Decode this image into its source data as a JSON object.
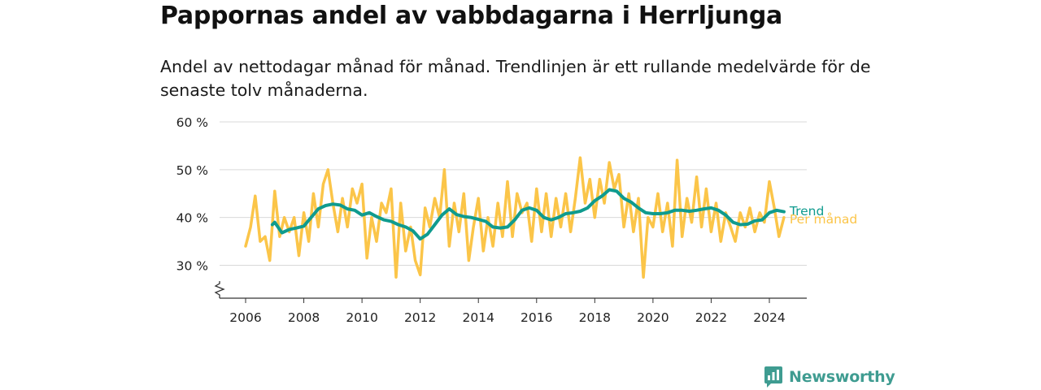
{
  "title": "Pappornas andel av vabbdagarna i Herrljunga",
  "subtitle": "Andel av nettodagar månad för månad. Trendlinjen är ett rullande medelvärde för de senaste tolv månaderna.",
  "brand": {
    "name": "Newsworthy",
    "color": "#3f9c91"
  },
  "colors": {
    "monthly": "#fbc549",
    "trend": "#0f9b8e",
    "grid": "#d9d9d9",
    "axis": "#333333"
  },
  "chart_data": {
    "type": "line",
    "x_unit": "year",
    "xlim": [
      2005.5,
      2025.25
    ],
    "ylim": [
      23,
      60
    ],
    "axis_break": true,
    "y_ticks": [
      30,
      40,
      50,
      60
    ],
    "y_tick_labels": [
      "30 %",
      "40 %",
      "50 %",
      "60 %"
    ],
    "x_ticks": [
      2006,
      2008,
      2010,
      2012,
      2014,
      2016,
      2018,
      2020,
      2022,
      2024
    ],
    "x_tick_labels": [
      "2006",
      "2008",
      "2010",
      "2012",
      "2014",
      "2016",
      "2018",
      "2020",
      "2022",
      "2024"
    ],
    "series": [
      {
        "name": "Per månad",
        "key": "monthly",
        "points": [
          [
            2006.0,
            34
          ],
          [
            2006.17,
            38
          ],
          [
            2006.33,
            44.5
          ],
          [
            2006.5,
            35
          ],
          [
            2006.67,
            36
          ],
          [
            2006.83,
            31
          ],
          [
            2007.0,
            45.5
          ],
          [
            2007.17,
            36
          ],
          [
            2007.33,
            40
          ],
          [
            2007.5,
            37
          ],
          [
            2007.67,
            40
          ],
          [
            2007.83,
            32
          ],
          [
            2008.0,
            41
          ],
          [
            2008.17,
            35
          ],
          [
            2008.33,
            45
          ],
          [
            2008.5,
            38
          ],
          [
            2008.67,
            47
          ],
          [
            2008.83,
            50
          ],
          [
            2009.0,
            43
          ],
          [
            2009.17,
            37
          ],
          [
            2009.33,
            44
          ],
          [
            2009.5,
            38
          ],
          [
            2009.67,
            46
          ],
          [
            2009.83,
            43
          ],
          [
            2010.0,
            47
          ],
          [
            2010.17,
            31.5
          ],
          [
            2010.33,
            40
          ],
          [
            2010.5,
            35
          ],
          [
            2010.67,
            43
          ],
          [
            2010.83,
            41
          ],
          [
            2011.0,
            46
          ],
          [
            2011.17,
            27.5
          ],
          [
            2011.33,
            43
          ],
          [
            2011.5,
            33
          ],
          [
            2011.67,
            38
          ],
          [
            2011.83,
            31
          ],
          [
            2012.0,
            28
          ],
          [
            2012.17,
            42
          ],
          [
            2012.33,
            38
          ],
          [
            2012.5,
            44
          ],
          [
            2012.67,
            40
          ],
          [
            2012.83,
            50
          ],
          [
            2013.0,
            34
          ],
          [
            2013.17,
            43
          ],
          [
            2013.33,
            37
          ],
          [
            2013.5,
            45
          ],
          [
            2013.67,
            31
          ],
          [
            2013.83,
            38
          ],
          [
            2014.0,
            44
          ],
          [
            2014.17,
            33
          ],
          [
            2014.33,
            40
          ],
          [
            2014.5,
            34
          ],
          [
            2014.67,
            43
          ],
          [
            2014.83,
            36
          ],
          [
            2015.0,
            47.5
          ],
          [
            2015.17,
            36
          ],
          [
            2015.33,
            45
          ],
          [
            2015.5,
            41
          ],
          [
            2015.67,
            43
          ],
          [
            2015.83,
            35
          ],
          [
            2016.0,
            46
          ],
          [
            2016.17,
            37
          ],
          [
            2016.33,
            45
          ],
          [
            2016.5,
            36
          ],
          [
            2016.67,
            44
          ],
          [
            2016.83,
            38
          ],
          [
            2017.0,
            45
          ],
          [
            2017.17,
            37
          ],
          [
            2017.33,
            44
          ],
          [
            2017.5,
            52.5
          ],
          [
            2017.67,
            43
          ],
          [
            2017.83,
            48
          ],
          [
            2018.0,
            40
          ],
          [
            2018.17,
            48
          ],
          [
            2018.33,
            43
          ],
          [
            2018.5,
            51.5
          ],
          [
            2018.67,
            46
          ],
          [
            2018.83,
            49
          ],
          [
            2019.0,
            38
          ],
          [
            2019.17,
            45
          ],
          [
            2019.33,
            37
          ],
          [
            2019.5,
            44
          ],
          [
            2019.67,
            27.5
          ],
          [
            2019.83,
            40
          ],
          [
            2020.0,
            38
          ],
          [
            2020.17,
            45
          ],
          [
            2020.33,
            37
          ],
          [
            2020.5,
            43
          ],
          [
            2020.67,
            34
          ],
          [
            2020.83,
            52
          ],
          [
            2021.0,
            36
          ],
          [
            2021.17,
            44
          ],
          [
            2021.33,
            39
          ],
          [
            2021.5,
            48.5
          ],
          [
            2021.67,
            38
          ],
          [
            2021.83,
            46
          ],
          [
            2022.0,
            37
          ],
          [
            2022.17,
            43
          ],
          [
            2022.33,
            35
          ],
          [
            2022.5,
            41
          ],
          [
            2022.67,
            38
          ],
          [
            2022.83,
            35
          ],
          [
            2023.0,
            41
          ],
          [
            2023.17,
            38
          ],
          [
            2023.33,
            42
          ],
          [
            2023.5,
            37
          ],
          [
            2023.67,
            41
          ],
          [
            2023.83,
            39
          ],
          [
            2024.0,
            47.5
          ],
          [
            2024.17,
            42
          ],
          [
            2024.33,
            36
          ],
          [
            2024.5,
            40
          ]
        ]
      },
      {
        "name": "Trend",
        "key": "trend",
        "points": [
          [
            2006.92,
            38.5
          ],
          [
            2007.0,
            39
          ],
          [
            2007.25,
            36.8
          ],
          [
            2007.5,
            37.5
          ],
          [
            2007.75,
            37.8
          ],
          [
            2008.0,
            38.2
          ],
          [
            2008.25,
            40
          ],
          [
            2008.5,
            41.8
          ],
          [
            2008.75,
            42.5
          ],
          [
            2009.0,
            42.8
          ],
          [
            2009.25,
            42.6
          ],
          [
            2009.5,
            41.8
          ],
          [
            2009.75,
            41.5
          ],
          [
            2010.0,
            40.5
          ],
          [
            2010.25,
            41
          ],
          [
            2010.5,
            40.2
          ],
          [
            2010.75,
            39.5
          ],
          [
            2011.0,
            39.2
          ],
          [
            2011.25,
            38.5
          ],
          [
            2011.5,
            38
          ],
          [
            2011.75,
            37.2
          ],
          [
            2012.0,
            35.5
          ],
          [
            2012.25,
            36.5
          ],
          [
            2012.5,
            38.5
          ],
          [
            2012.75,
            40.5
          ],
          [
            2013.0,
            41.8
          ],
          [
            2013.25,
            40.6
          ],
          [
            2013.5,
            40.2
          ],
          [
            2013.75,
            40
          ],
          [
            2014.0,
            39.6
          ],
          [
            2014.25,
            39.2
          ],
          [
            2014.5,
            38
          ],
          [
            2014.75,
            37.8
          ],
          [
            2015.0,
            38
          ],
          [
            2015.25,
            39.5
          ],
          [
            2015.5,
            41.5
          ],
          [
            2015.75,
            42
          ],
          [
            2016.0,
            41.5
          ],
          [
            2016.25,
            40
          ],
          [
            2016.5,
            39.5
          ],
          [
            2016.75,
            40
          ],
          [
            2017.0,
            40.8
          ],
          [
            2017.25,
            41
          ],
          [
            2017.5,
            41.3
          ],
          [
            2017.75,
            42
          ],
          [
            2018.0,
            43.5
          ],
          [
            2018.25,
            44.5
          ],
          [
            2018.5,
            45.8
          ],
          [
            2018.75,
            45.5
          ],
          [
            2019.0,
            44
          ],
          [
            2019.25,
            43.2
          ],
          [
            2019.5,
            42
          ],
          [
            2019.75,
            41
          ],
          [
            2020.0,
            40.8
          ],
          [
            2020.25,
            40.8
          ],
          [
            2020.5,
            41
          ],
          [
            2020.75,
            41.5
          ],
          [
            2021.0,
            41.5
          ],
          [
            2021.25,
            41.3
          ],
          [
            2021.5,
            41.5
          ],
          [
            2021.75,
            41.8
          ],
          [
            2022.0,
            42
          ],
          [
            2022.25,
            41.5
          ],
          [
            2022.5,
            40.5
          ],
          [
            2022.75,
            39
          ],
          [
            2023.0,
            38.5
          ],
          [
            2023.25,
            38.6
          ],
          [
            2023.5,
            39.3
          ],
          [
            2023.75,
            39.5
          ],
          [
            2024.0,
            41
          ],
          [
            2024.25,
            41.5
          ],
          [
            2024.5,
            41.2
          ]
        ]
      }
    ]
  }
}
